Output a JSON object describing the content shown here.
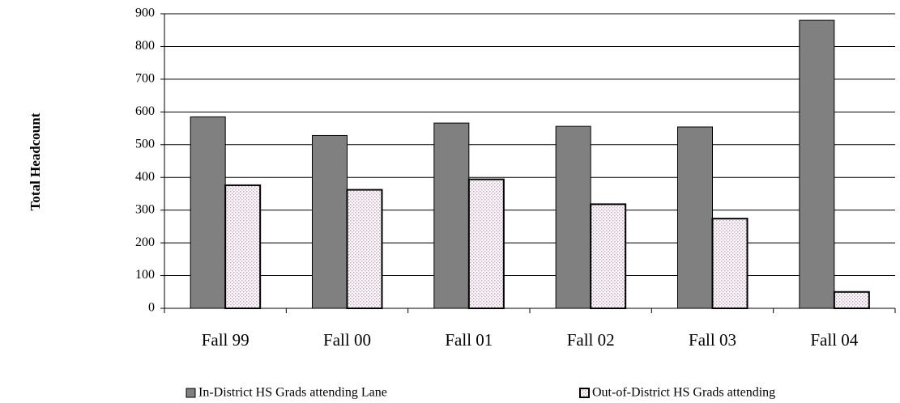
{
  "chart_data": {
    "type": "bar",
    "y_label": "Total Headcount",
    "categories": [
      "Fall 99",
      "Fall 00",
      "Fall 01",
      "Fall 02",
      "Fall 03",
      "Fall 04"
    ],
    "series": [
      {
        "name": "In-District HS Grads attending Lane",
        "color": "#808080",
        "values": [
          585,
          528,
          566,
          556,
          554,
          880
        ]
      },
      {
        "name": "Out-of-District HS Grads attending",
        "color": "#c8a0c0",
        "values": [
          376,
          362,
          394,
          318,
          274,
          50
        ]
      }
    ],
    "ylim": [
      0,
      900
    ],
    "yticks": [
      0,
      100,
      200,
      300,
      400,
      500,
      600,
      700,
      800,
      900
    ],
    "grid": true
  }
}
